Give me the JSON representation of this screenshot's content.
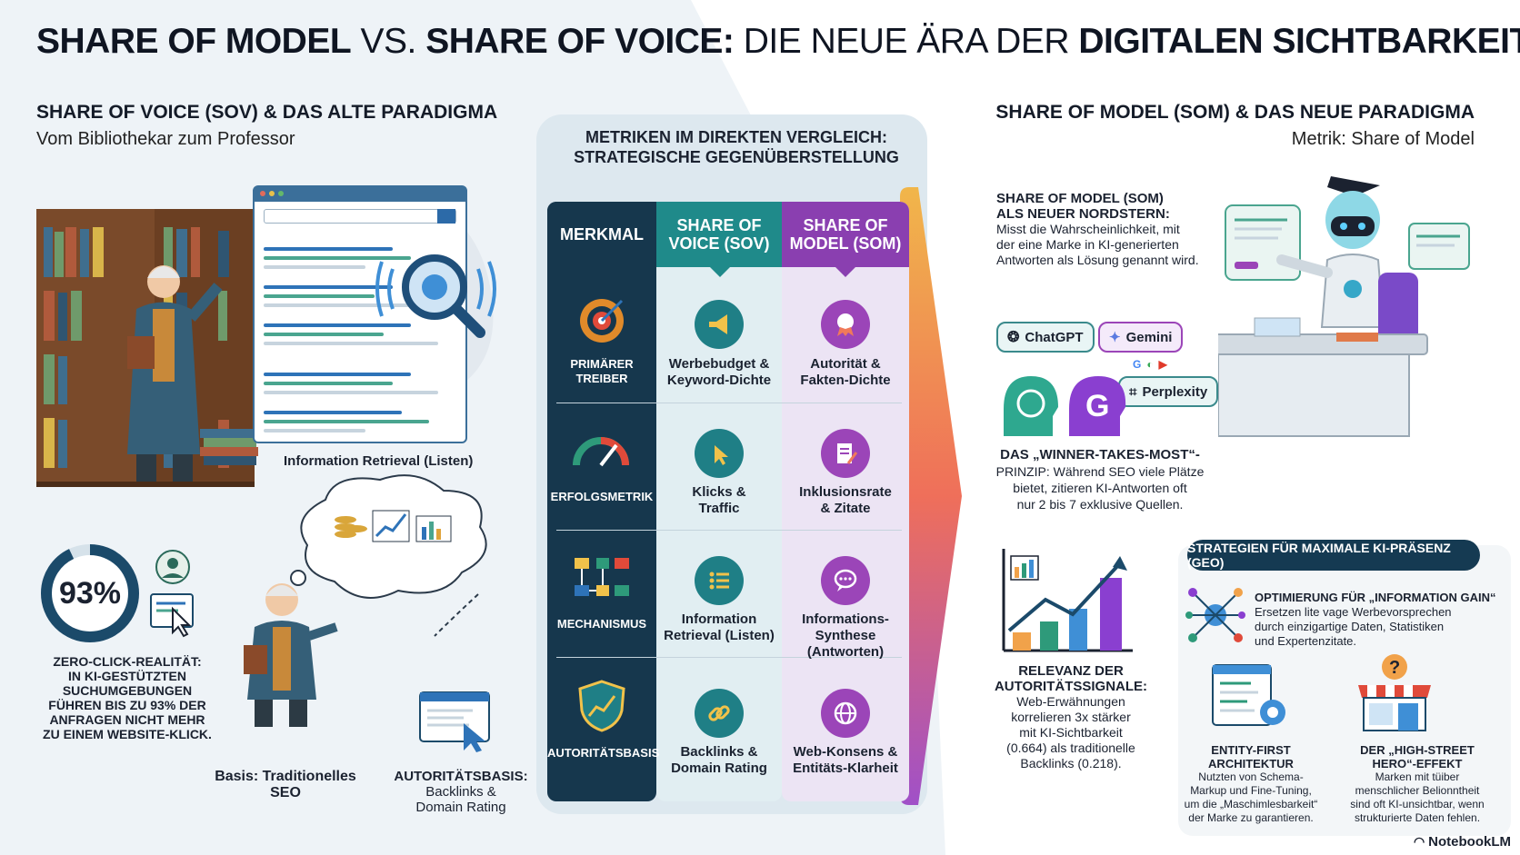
{
  "title": {
    "part1": "SHARE OF MODEL",
    "part2": " VS. ",
    "part3": "SHARE OF VOICE:",
    "part4": " DIE NEUE ÄRA DER ",
    "part5": "DIGITALEN SICHTBARKEIT"
  },
  "left": {
    "heading": "SHARE OF VOICE (SOV) & DAS ALTE PARADIGMA",
    "subheading": "Vom Bibliothekar zum Professor",
    "retrieval_caption": "Information Retrieval (Listen)",
    "stat_value": "93%",
    "zero_click_text": [
      "ZERO-CLICK-REALITÄT:",
      "IN KI-GESTÜTZTEN",
      "SUCHUMGEBUNGEN",
      "FÜHREN BIS ZU 93% DER",
      "ANFRAGEN NICHT MEHR",
      "ZU EINEM WEBSITE-KLICK."
    ],
    "basis_caption": [
      "Basis: Traditionelles",
      "SEO"
    ],
    "authority_caption_title": "AUTORITÄTSBASIS:",
    "authority_caption_lines": [
      "Backlinks &",
      "Domain Rating"
    ]
  },
  "center": {
    "heading_lines": [
      "METRIKEN IM DIREKTEN VERGLEICH:",
      "STRATEGISCHE GEGENÜBERSTELLUNG"
    ],
    "col_headers": {
      "merkmal": "MERKMAL",
      "sov": [
        "SHARE OF",
        "VOICE (SOV)"
      ],
      "som": [
        "SHARE OF",
        "MODEL (SOM)"
      ]
    },
    "rows": [
      {
        "label": [
          "PRIMÄRER",
          "TREIBER"
        ],
        "sov": [
          "Werbebudget &",
          "Keyword-Dichte"
        ],
        "som": [
          "Autorität &",
          "Fakten-Dichte"
        ],
        "icon_label": "gear-target-icon",
        "sov_icon": "megaphone-icon",
        "som_icon": "award-ribbon-icon"
      },
      {
        "label": [
          "ERFOLGSMETRIK"
        ],
        "sov": [
          "Klicks &",
          "Traffic"
        ],
        "som": [
          "Inklusionsrate",
          "& Zitate"
        ],
        "icon_label": "gauge-icon",
        "sov_icon": "cursor-click-icon",
        "som_icon": "document-edit-icon"
      },
      {
        "label": [
          "MECHANISMUS"
        ],
        "sov": [
          "Information",
          "Retrieval (Listen)"
        ],
        "som": [
          "Informations-",
          "Synthese (Antworten)"
        ],
        "icon_label": "flowchart-icon",
        "sov_icon": "list-icon",
        "som_icon": "chat-bubble-icon"
      },
      {
        "label": [
          "AUTORITÄTSBASIS"
        ],
        "sov": [
          "Backlinks &",
          "Domain Rating"
        ],
        "som": [
          "Web-Konsens &",
          "Entitäts-Klarheit"
        ],
        "icon_label": "shield-chart-icon",
        "sov_icon": "link-icon",
        "som_icon": "globe-icon"
      }
    ],
    "colors": {
      "merkmal": "#16374d",
      "sov_header": "#1f8a8a",
      "som_header": "#8a3fb0"
    }
  },
  "right": {
    "heading": "SHARE OF MODEL (SOM) & DAS NEUE PARADIGMA",
    "subheading": "Metrik: Share of Model",
    "northstar_title": [
      "SHARE OF MODEL (SOM)",
      "ALS NEUER NORDSTERN:"
    ],
    "northstar_text": [
      "Misst die Wahrscheinlichkeit, mit",
      "der eine Marke in KI-generierten",
      "Antworten als Lösung genannt wird."
    ],
    "chips": {
      "chatgpt": "ChatGPT",
      "gemini": "Gemini",
      "perplexity": "Perplexity"
    },
    "winner_title": "DAS „WINNER-TAKES-MOST“-",
    "winner_lines": [
      "PRINZIP: Während SEO viele Plätze",
      "bietet, zitieren KI-Antworten oft",
      "nur 2 bis 7 exklusive Quellen."
    ],
    "relevance_title": [
      "RELEVANZ DER",
      "AUTORITÄTSSIGNALE:"
    ],
    "relevance_lines": [
      "Web-Erwähnungen",
      "korrelieren 3x stärker",
      "mit KI-Sichtbarkeit",
      "(0.664) als traditionelle",
      "Backlinks (0.218)."
    ],
    "geo_pill": "STRATEGIEN FÜR MAXIMALE KI-PRÄSENZ (GEO)",
    "geo1_title": "OPTIMIERUNG FÜR „INFORMATION GAIN“",
    "geo1_lines": [
      "Ersetzen lite vage Werbevorsprechen",
      "durch einzigartige Daten, Statistiken",
      "und Expertenzitate."
    ],
    "geo2_title": [
      "ENTITY-FIRST",
      "ARCHITEKTUR"
    ],
    "geo2_lines": [
      "Nutzten von Schema-",
      "Markup und Fine-Tuning,",
      "um die „Maschimlesbarkeit“",
      "der Marke zu garantieren."
    ],
    "geo3_title": [
      "DER „HIGH-STREET",
      "HERO“-EFFEKT"
    ],
    "geo3_lines": [
      "Marken mit tüiber",
      "menschlicher Belionntheit",
      "sind oft KI-unsichtbar, wenn",
      "strukturierte Daten fehlen."
    ]
  },
  "footer": {
    "brand": "NotebookLM"
  }
}
